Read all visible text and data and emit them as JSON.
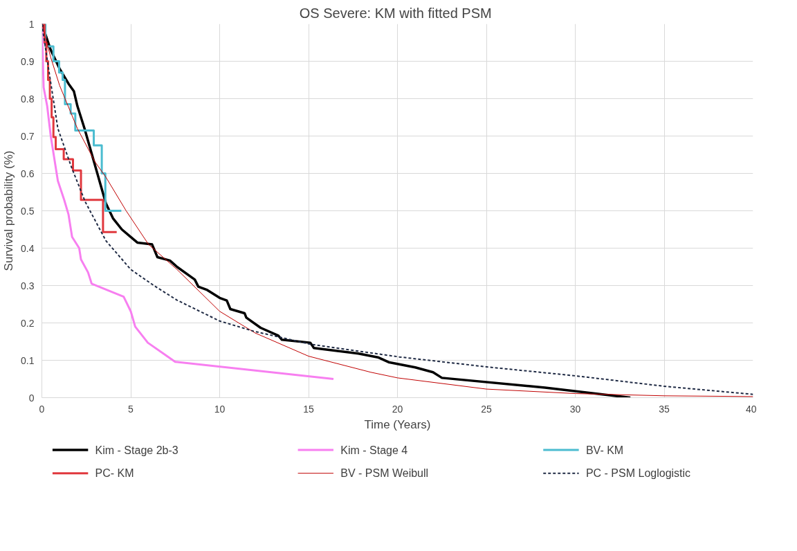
{
  "chart_data": {
    "type": "line",
    "title": "OS Severe:  KM with fitted PSM",
    "xlabel": "Time (Years)",
    "ylabel": "Survival probability (%)",
    "xlim": [
      0,
      40
    ],
    "xticks": [
      0,
      5,
      10,
      15,
      20,
      25,
      30,
      35,
      40
    ],
    "ylim": [
      0,
      1
    ],
    "yticks": [
      0,
      0.1,
      0.2,
      0.3,
      0.4,
      0.5,
      0.6,
      0.7,
      0.8,
      0.9,
      1
    ],
    "grid": true,
    "legend": "bottom",
    "marker": "none",
    "series": [
      {
        "name": "Kim - Stage 2b-3",
        "color": "#000000",
        "line_style": "solid",
        "x": [
          0,
          0.5,
          1,
          1.5,
          1.8,
          2,
          2.4,
          2.7,
          3,
          3.3,
          3.6,
          4,
          4.5,
          5,
          5.37,
          6.2,
          6.5,
          7.2,
          7.6,
          8.6,
          8.8,
          9.3,
          10,
          10.4,
          10.6,
          11.4,
          11.5,
          12.3,
          13.3,
          13.5,
          15.1,
          15.3,
          17.8,
          18.9,
          19.5,
          21,
          22,
          22.5,
          28.3,
          33.1
        ],
        "values": [
          1,
          0.93,
          0.88,
          0.84,
          0.82,
          0.78,
          0.72,
          0.67,
          0.62,
          0.57,
          0.52,
          0.48,
          0.45,
          0.43,
          0.415,
          0.41,
          0.376,
          0.367,
          0.35,
          0.316,
          0.297,
          0.288,
          0.267,
          0.26,
          0.237,
          0.226,
          0.214,
          0.187,
          0.166,
          0.155,
          0.147,
          0.133,
          0.118,
          0.108,
          0.095,
          0.081,
          0.068,
          0.053,
          0.027,
          0
        ]
      },
      {
        "name": "Kim - Stage 4",
        "color": "#f77ff0",
        "line_style": "solid",
        "x": [
          0,
          0.1,
          0.3,
          0.5,
          0.9,
          1.25,
          1.5,
          1.7,
          2.1,
          2.2,
          2.6,
          2.8,
          4.6,
          5,
          5.25,
          5.96,
          7.5,
          16.4
        ],
        "values": [
          1,
          0.83,
          0.78,
          0.7,
          0.58,
          0.53,
          0.49,
          0.43,
          0.4,
          0.37,
          0.335,
          0.305,
          0.27,
          0.231,
          0.19,
          0.147,
          0.096,
          0.05
        ]
      },
      {
        "name": "BV- KM",
        "type": "step",
        "color": "#4bbcd0",
        "line_style": "solid",
        "x": [
          0,
          0.2,
          0.65,
          0.97,
          1.17,
          1.3,
          1.62,
          1.88,
          2.92,
          3.37,
          3.57,
          4.47
        ],
        "values": [
          1,
          0.94,
          0.9,
          0.87,
          0.85,
          0.785,
          0.76,
          0.715,
          0.675,
          0.6,
          0.5,
          0.5
        ]
      },
      {
        "name": "PC- KM",
        "type": "step",
        "color": "#e0383e",
        "line_style": "solid",
        "x": [
          0,
          0.15,
          0.25,
          0.35,
          0.45,
          0.55,
          0.65,
          0.78,
          1.23,
          1.75,
          2.2,
          3.44,
          4.21
        ],
        "values": [
          1,
          0.95,
          0.9,
          0.85,
          0.8,
          0.75,
          0.697,
          0.665,
          0.638,
          0.608,
          0.529,
          0.443,
          0.443
        ]
      },
      {
        "name": "BV - PSM Weibull",
        "color": "#c00000",
        "line_style": "solid",
        "x": [
          0,
          0.5,
          1,
          2,
          3,
          3.6,
          4.74,
          6,
          7.6,
          10,
          12,
          15,
          18.5,
          20,
          25,
          30,
          35,
          40
        ],
        "values": [
          1,
          0.91,
          0.835,
          0.72,
          0.63,
          0.59,
          0.5,
          0.41,
          0.343,
          0.231,
          0.173,
          0.111,
          0.068,
          0.053,
          0.023,
          0.011,
          0.005,
          0.003
        ]
      },
      {
        "name": "PC - PSM Loglogistic",
        "color": "#1f2a44",
        "line_style": "dashed",
        "x": [
          0,
          0.39,
          0.9,
          1.67,
          2.45,
          3.6,
          5,
          6.3,
          7.6,
          10,
          11.9,
          15.1,
          20.1,
          25.1,
          30.1,
          35.1,
          40
        ],
        "values": [
          1,
          0.876,
          0.72,
          0.616,
          0.523,
          0.42,
          0.343,
          0.3,
          0.261,
          0.205,
          0.178,
          0.143,
          0.109,
          0.082,
          0.058,
          0.03,
          0.009
        ]
      }
    ]
  }
}
